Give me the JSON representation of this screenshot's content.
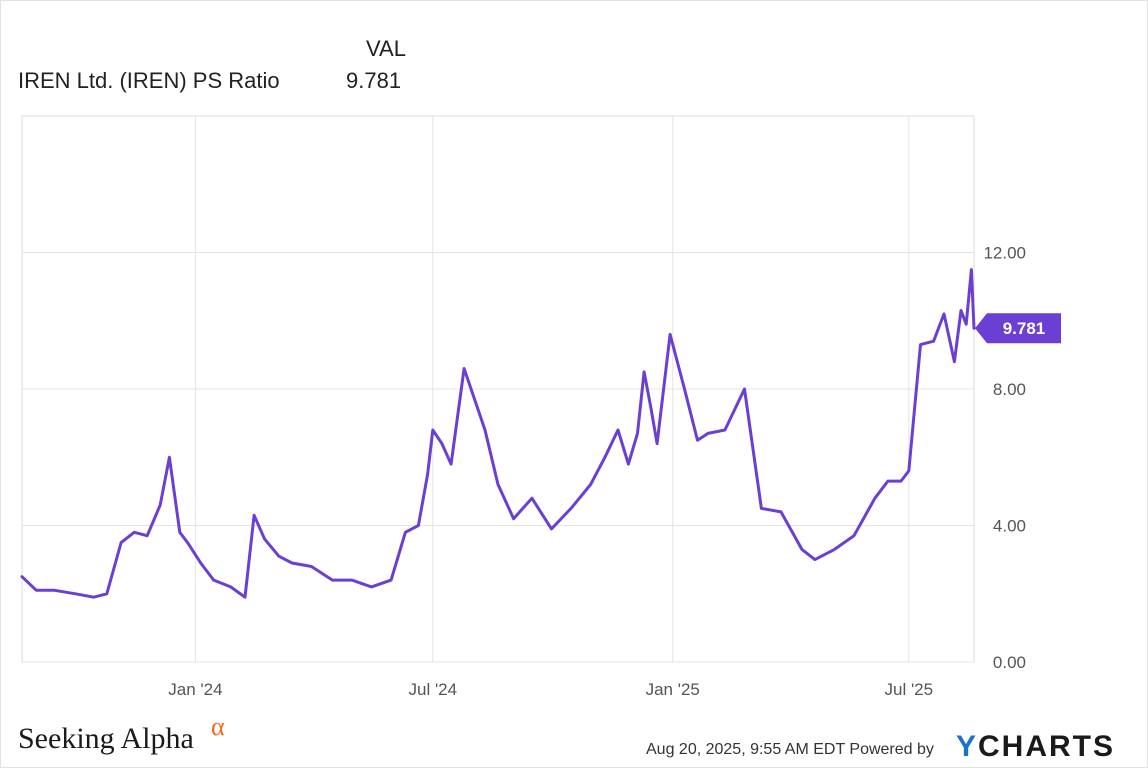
{
  "legend": {
    "column_header": "VAL",
    "series_name": "IREN Ltd. (IREN) PS Ratio",
    "series_value": "9.781"
  },
  "chart_data": {
    "type": "line",
    "title": "",
    "xlabel": "",
    "ylabel": "",
    "x_tick_labels": [
      "Jan '24",
      "Jul '24",
      "Jan '25",
      "Jul '25"
    ],
    "y_tick_labels": [
      "0.00",
      "4.00",
      "8.00",
      "12.00"
    ],
    "ylim": [
      0,
      16
    ],
    "xlim": [
      "2023-08-21",
      "2025-08-20"
    ],
    "grid": true,
    "y_axis_side": "right",
    "current_value_label": "9.781",
    "line_color": "#6b3fd4",
    "series": [
      {
        "name": "IREN Ltd. (IREN) PS Ratio",
        "x": [
          "2023-08-21",
          "2023-09-01",
          "2023-09-15",
          "2023-10-01",
          "2023-10-15",
          "2023-10-25",
          "2023-11-05",
          "2023-11-15",
          "2023-11-25",
          "2023-12-05",
          "2023-12-12",
          "2023-12-20",
          "2023-12-26",
          "2024-01-05",
          "2024-01-15",
          "2024-01-28",
          "2024-02-08",
          "2024-02-15",
          "2024-02-23",
          "2024-03-05",
          "2024-03-15",
          "2024-03-30",
          "2024-04-15",
          "2024-04-30",
          "2024-05-15",
          "2024-05-30",
          "2024-06-10",
          "2024-06-20",
          "2024-06-27",
          "2024-07-01",
          "2024-07-08",
          "2024-07-15",
          "2024-07-25",
          "2024-08-10",
          "2024-08-20",
          "2024-09-01",
          "2024-09-15",
          "2024-09-30",
          "2024-10-15",
          "2024-10-30",
          "2024-11-10",
          "2024-11-20",
          "2024-11-28",
          "2024-12-05",
          "2024-12-10",
          "2024-12-15",
          "2024-12-20",
          "2024-12-30",
          "2025-01-10",
          "2025-01-20",
          "2025-01-28",
          "2025-02-10",
          "2025-02-25",
          "2025-03-10",
          "2025-03-25",
          "2025-04-10",
          "2025-04-20",
          "2025-05-05",
          "2025-05-20",
          "2025-06-05",
          "2025-06-15",
          "2025-06-25",
          "2025-07-01",
          "2025-07-10",
          "2025-07-20",
          "2025-07-28",
          "2025-08-05",
          "2025-08-10",
          "2025-08-14",
          "2025-08-18",
          "2025-08-20"
        ],
        "values": [
          2.5,
          2.1,
          2.1,
          2.0,
          1.9,
          2.0,
          3.5,
          3.8,
          3.7,
          4.6,
          6.0,
          3.8,
          3.5,
          2.9,
          2.4,
          2.2,
          1.9,
          4.3,
          3.6,
          3.1,
          2.9,
          2.8,
          2.4,
          2.4,
          2.2,
          2.4,
          3.8,
          4.0,
          5.5,
          6.8,
          6.4,
          5.8,
          8.6,
          6.8,
          5.2,
          4.2,
          4.8,
          3.9,
          4.5,
          5.2,
          6.0,
          6.8,
          5.8,
          6.7,
          8.5,
          7.5,
          6.4,
          9.6,
          8.0,
          6.5,
          6.7,
          6.8,
          8.0,
          4.5,
          4.4,
          3.3,
          3.0,
          3.3,
          3.7,
          4.8,
          5.3,
          5.3,
          5.6,
          9.3,
          9.4,
          10.2,
          8.8,
          10.3,
          9.9,
          11.5,
          9.781
        ]
      }
    ]
  },
  "footer": {
    "brand_name": "Seeking Alpha",
    "brand_mark": "α",
    "timestamp": "Aug 20, 2025, 9:55 AM EDT Powered by",
    "provider_prefix": "Y",
    "provider_rest": "CHARTS"
  }
}
